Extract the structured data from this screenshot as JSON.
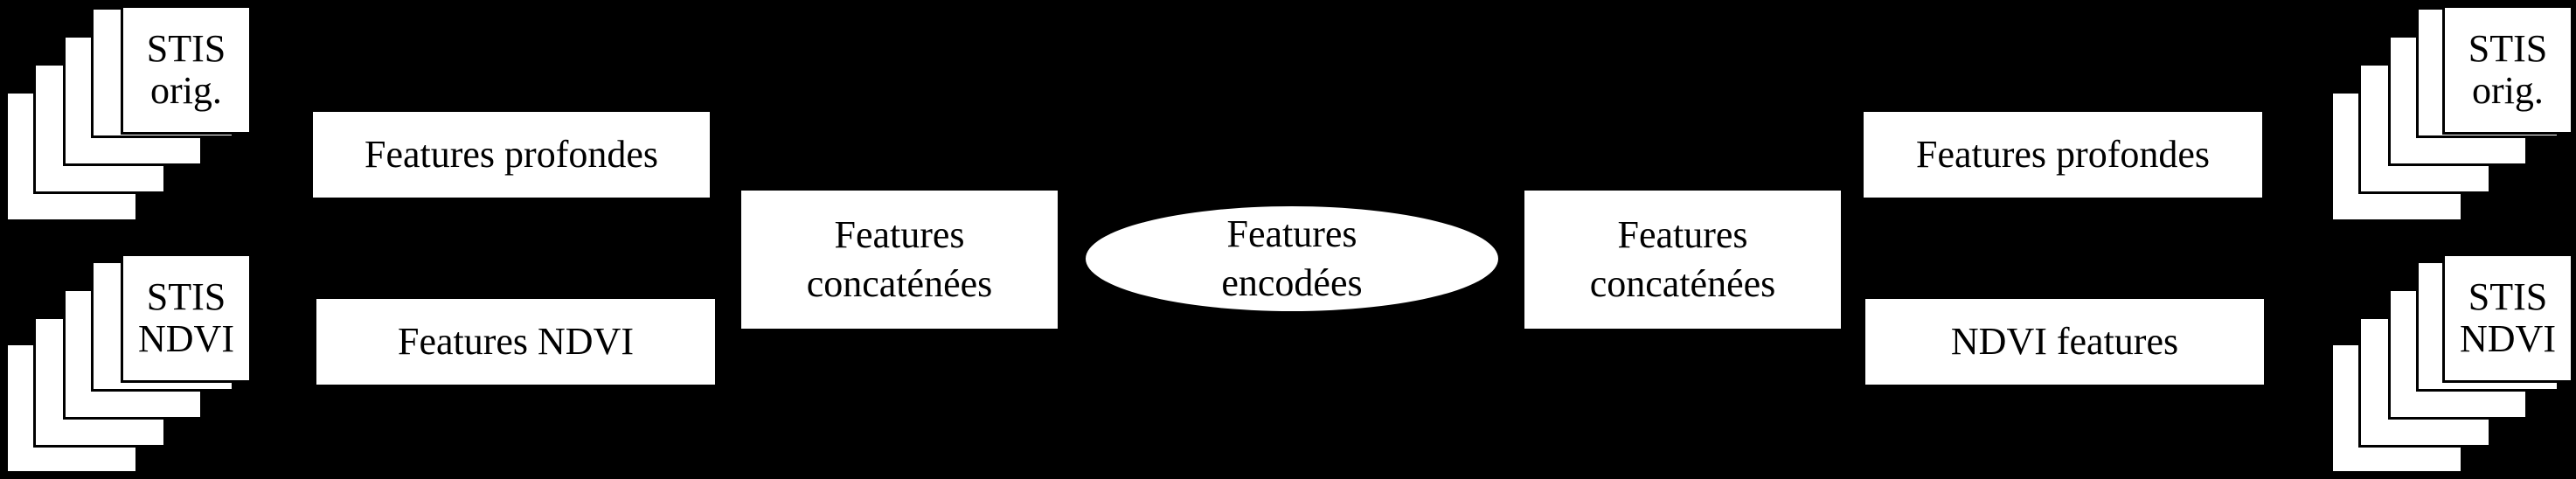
{
  "stacks": {
    "left_top": {
      "label": "STIS\norig."
    },
    "left_bottom": {
      "label": "STIS\nNDVI"
    },
    "right_top": {
      "label": "STIS\norig."
    },
    "right_bottom": {
      "label": "STIS\nNDVI"
    }
  },
  "left": {
    "deep": "Features profondes",
    "ndvi": "Features NDVI",
    "concat": "Features\nconcaténées"
  },
  "center": {
    "encoded": "Features\nencodées"
  },
  "right": {
    "concat": "Features\nconcaténées",
    "deep": "Features profondes",
    "ndvi": "NDVI features"
  }
}
